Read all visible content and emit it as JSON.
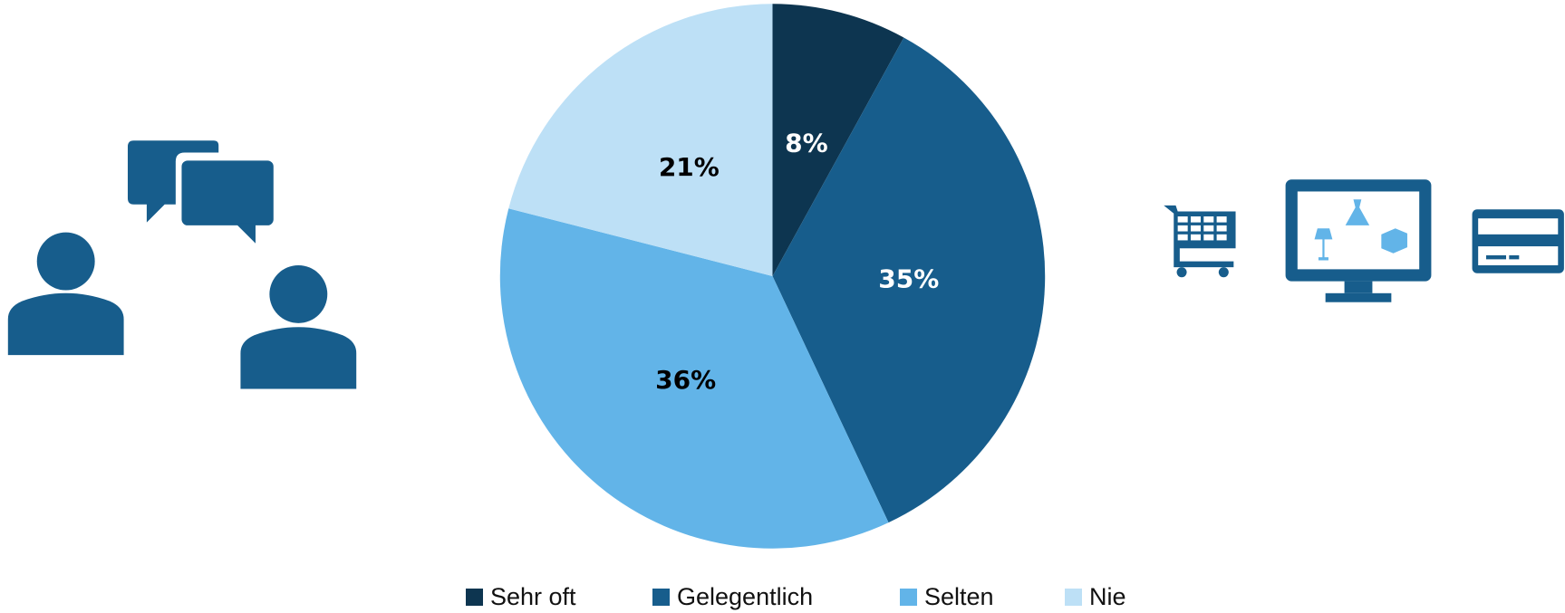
{
  "chart_data": {
    "type": "pie",
    "categories": [
      "Sehr oft",
      "Gelegentlich",
      "Selten",
      "Nie"
    ],
    "values": [
      8,
      35,
      36,
      21
    ],
    "value_labels": [
      "8%",
      "35%",
      "36%",
      "21%"
    ],
    "colors": [
      "#0d3550",
      "#175d8c",
      "#62b4e8",
      "#bde0f6"
    ],
    "label_colors": [
      "#ffffff",
      "#ffffff",
      "#000000",
      "#000000"
    ],
    "legend": "bottom"
  }
}
